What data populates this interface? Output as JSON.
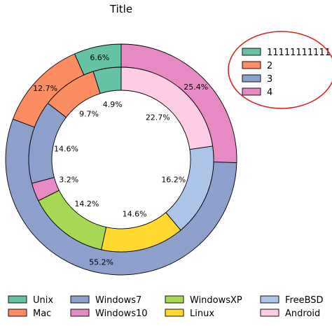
{
  "chart_data": {
    "type": "pie",
    "title": "Title",
    "xlabel": "",
    "ylabel": "",
    "outer_ring": {
      "slices": [
        {
          "name": "11111111111",
          "value": 6.6,
          "label": "6.6%",
          "color": "#66c2a5"
        },
        {
          "name": "2",
          "value": 12.7,
          "label": "12.7%",
          "color": "#fc8d62"
        },
        {
          "name": "3",
          "value": 55.2,
          "label": "55.2%",
          "color": "#8da0cb"
        },
        {
          "name": "4",
          "value": 25.4,
          "label": "25.4%",
          "color": "#e78ac3"
        }
      ]
    },
    "inner_ring": {
      "slices": [
        {
          "name": "Unix",
          "value": 4.9,
          "label": "4.9%",
          "color": "#66c2a5"
        },
        {
          "name": "Mac",
          "value": 9.7,
          "label": "9.7%",
          "color": "#fc8d62"
        },
        {
          "name": "Windows7",
          "value": 14.6,
          "label": "14.6%",
          "color": "#8da0cb"
        },
        {
          "name": "Windows10",
          "value": 3.2,
          "label": "3.2%",
          "color": "#e78ac3"
        },
        {
          "name": "WindowsXP",
          "value": 14.2,
          "label": "14.2%",
          "color": "#a6d854"
        },
        {
          "name": "Linux",
          "value": 14.6,
          "label": "14.6%",
          "color": "#ffd92f"
        },
        {
          "name": "FreeBSD",
          "value": 16.2,
          "label": "16.2%",
          "color": "#abc4e8"
        },
        {
          "name": "Android",
          "value": 22.7,
          "label": "22.7%",
          "color": "#fccde5"
        }
      ]
    },
    "start_angle_deg": 90,
    "direction": "counterclockwise",
    "outer_legend": {
      "placement": "top-right",
      "highlight": "red-ellipse"
    },
    "inner_legend": {
      "placement": "bottom",
      "columns": 5
    },
    "grid": false
  }
}
